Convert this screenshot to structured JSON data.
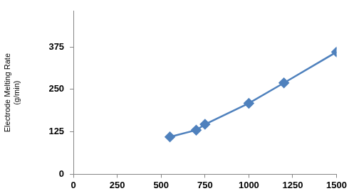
{
  "chart_data": {
    "type": "line",
    "y_label": [
      "Electrode Melting Rate",
      "(g/min)"
    ],
    "x": [
      550,
      700,
      750,
      1000,
      1200,
      1500
    ],
    "values": [
      110,
      130,
      147,
      209,
      269,
      360
    ],
    "color": "#4f81bd",
    "marker": "diamond",
    "line_style": "solid",
    "xlim": [
      0,
      1500
    ],
    "xticks": [
      0,
      250,
      500,
      750,
      1000,
      1250,
      1500
    ],
    "ylim": [
      0,
      480
    ],
    "yticks": [
      0,
      125,
      250,
      375
    ],
    "grid": false
  }
}
